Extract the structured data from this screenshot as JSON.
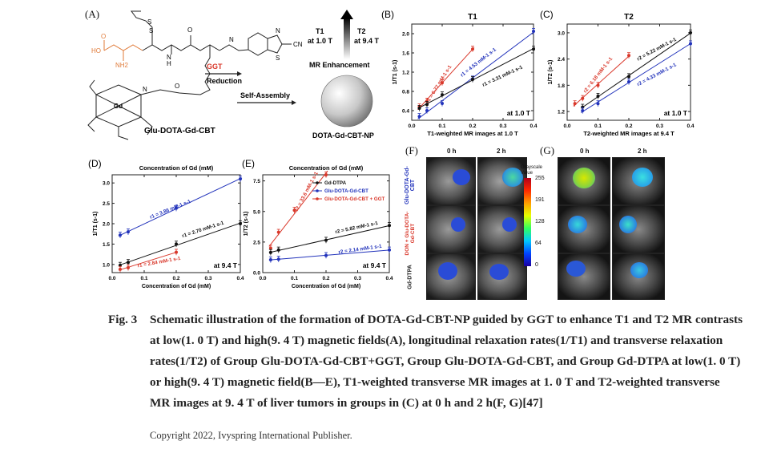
{
  "panelA": {
    "label": "(A)",
    "molecule_name": "Glu-DOTA-Gd-CBT",
    "nanoparticle_name": "DOTA-Gd-CBT-NP",
    "steps": [
      "GGT",
      "Reduction",
      "Self-Assembly"
    ],
    "enhancement_label": "MR Enhancement",
    "t1_label": "T1",
    "t1_field": "at 1.0 T",
    "t2_label": "T2",
    "t2_field": "at 9.4 T",
    "atoms": {
      "ho": "HO",
      "nh2": "NH2",
      "o": "O",
      "s": "S",
      "n": "N",
      "h": "H",
      "cn": "CN",
      "gd": "Gd"
    }
  },
  "chart_data": [
    {
      "id": "B",
      "label": "(B)",
      "type": "line",
      "title": "T1",
      "xlabel": "T1-weighted MR images at 1.0 T",
      "ylabel": "1/T1 (s-1)",
      "xlim": [
        0.0,
        0.4
      ],
      "ylim": [
        0.2,
        2.2
      ],
      "xticks": [
        "0.0",
        "0.1",
        "0.2",
        "0.3",
        "0.4"
      ],
      "yticks": [
        "0.4",
        "0.8",
        "1.2",
        "1.6",
        "2.0"
      ],
      "corner_note": "at 1.0 T",
      "series": [
        {
          "color": "#d9372a",
          "annotation": "r1 = 6.77 mM-1 s-1",
          "x": [
            0.025,
            0.05,
            0.1,
            0.2
          ],
          "y": [
            0.48,
            0.6,
            0.98,
            1.68
          ]
        },
        {
          "color": "#2233bb",
          "annotation": "r1 = 4.53 mM-1 s-1",
          "x": [
            0.025,
            0.05,
            0.1,
            0.2,
            0.4
          ],
          "y": [
            0.28,
            0.4,
            0.55,
            1.06,
            2.05
          ]
        },
        {
          "color": "#111111",
          "annotation": "r1 = 3.31 mM-1 s-1",
          "x": [
            0.025,
            0.05,
            0.1,
            0.2,
            0.4
          ],
          "y": [
            0.45,
            0.53,
            0.73,
            1.05,
            1.68
          ]
        }
      ]
    },
    {
      "id": "C",
      "label": "(C)",
      "type": "line",
      "title": "T2",
      "xlabel": "T2-weighted MR images at 9.4 T",
      "ylabel": "1/T2 (s-1)",
      "xlim": [
        0.0,
        0.4
      ],
      "ylim": [
        1.0,
        3.2
      ],
      "xticks": [
        "0.0",
        "0.1",
        "0.2",
        "0.3",
        "0.4"
      ],
      "yticks": [
        "1.2",
        "1.8",
        "2.4",
        "3.0"
      ],
      "corner_note": "at 1.0 T",
      "series": [
        {
          "color": "#d9372a",
          "annotation": "r2 = 6.18 mM-1 s-1",
          "x": [
            0.025,
            0.05,
            0.1,
            0.2
          ],
          "y": [
            1.38,
            1.5,
            1.8,
            2.48
          ]
        },
        {
          "color": "#111111",
          "annotation": "r2 = 5.22 mM-1 s-1",
          "x": [
            0.05,
            0.1,
            0.2,
            0.4
          ],
          "y": [
            1.3,
            1.55,
            2.0,
            3.0
          ]
        },
        {
          "color": "#2233bb",
          "annotation": "r2 = 4.33 mM-1 s-1",
          "x": [
            0.05,
            0.1,
            0.2,
            0.4
          ],
          "y": [
            1.22,
            1.38,
            1.88,
            2.75
          ]
        }
      ]
    },
    {
      "id": "D",
      "label": "(D)",
      "type": "line",
      "title": "Concentration of Gd (mM)",
      "xlabel": "Concentration of Gd (mM)",
      "ylabel": "1/T1 (s-1)",
      "xlim": [
        0.0,
        0.4
      ],
      "ylim": [
        0.8,
        3.2
      ],
      "xticks": [
        "0.0",
        "0.1",
        "0.2",
        "0.3",
        "0.4"
      ],
      "yticks": [
        "1.0",
        "1.5",
        "2.0",
        "2.5",
        "3.0"
      ],
      "corner_note": "at 9.4 T",
      "series": [
        {
          "color": "#2233bb",
          "annotation": "r1 = 3.86 mM-1 s-1",
          "x": [
            0.025,
            0.05,
            0.2,
            0.4
          ],
          "y": [
            1.72,
            1.8,
            2.38,
            3.1
          ]
        },
        {
          "color": "#111111",
          "annotation": "r1 = 2.70 mM-1 s-1",
          "x": [
            0.025,
            0.05,
            0.2,
            0.4
          ],
          "y": [
            0.98,
            1.05,
            1.5,
            2.0
          ]
        },
        {
          "color": "#d9372a",
          "annotation": "r1 = 2.84 mM-1 s-1",
          "x": [
            0.025,
            0.05,
            0.2
          ],
          "y": [
            0.88,
            0.92,
            1.3
          ]
        }
      ]
    },
    {
      "id": "E",
      "label": "(E)",
      "type": "line",
      "title": "Concentration of Gd (mM)",
      "xlabel": "Concentration of Gd (mM)",
      "ylabel": "1/T2 (s-1)",
      "xlim": [
        0.0,
        0.4
      ],
      "ylim": [
        0.0,
        8.0
      ],
      "xticks": [
        "0.0",
        "0.1",
        "0.2",
        "0.3",
        "0.4"
      ],
      "yticks": [
        "0.0",
        "2.5",
        "5.0",
        "7.5"
      ],
      "corner_note": "at 9.4 T",
      "legend": [
        "Gd-DTPA",
        "Glu-DOTA-Gd-CBT",
        "Glu-DOTA-Gd-CBT + GGT"
      ],
      "series": [
        {
          "color": "#d9372a",
          "annotation": "r2 = 33.6 mM-1 s-1",
          "x": [
            0.025,
            0.05,
            0.1,
            0.2
          ],
          "y": [
            2.0,
            3.3,
            5.1,
            8.0
          ]
        },
        {
          "color": "#111111",
          "annotation": "r2 = 5.82 mM-1 s-1",
          "x": [
            0.025,
            0.05,
            0.2,
            0.4
          ],
          "y": [
            1.65,
            1.85,
            2.65,
            3.85
          ]
        },
        {
          "color": "#2233bb",
          "annotation": "r2 = 2.14 mM-1 s-1",
          "x": [
            0.025,
            0.05,
            0.2,
            0.4
          ],
          "y": [
            1.05,
            1.1,
            1.4,
            1.85
          ]
        }
      ]
    }
  ],
  "panelF": {
    "label": "(F)",
    "time_labels": [
      "0 h",
      "2 h"
    ],
    "row_labels": [
      "Glu-DOTA-Gd-CBT",
      "DON + Glu-DOTA-Gd-CBT",
      "Gd-DTPA"
    ],
    "colorbar_title": "Grayscale Value",
    "colorbar_ticks": [
      "255",
      "191",
      "128",
      "64",
      "0"
    ]
  },
  "panelG": {
    "label": "(G)",
    "time_labels": [
      "0 h",
      "2 h"
    ]
  },
  "caption": {
    "fig_no": "Fig. 3",
    "text": "Schematic illustration of the formation of DOTA-Gd-CBT-NP guided by GGT to enhance T1 and T2 MR contrasts at low(1. 0 T) and high(9. 4 T) magnetic fields(A), longitudinal relaxation rates(1/T1) and transverse relaxation rates(1/T2) of Group Glu-DOTA-Gd-CBT+GGT, Group Glu-DOTA-Gd-CBT, and Group Gd-DTPA at low(1. 0 T) or high(9. 4 T) magnetic field(B—E), T1-weighted transverse MR images at 1. 0 T and T2-weighted transverse MR images at 9. 4 T of liver tumors in groups in (C) at 0 h and 2 h(F, G)[47]",
    "copyright": "Copyright 2022, Ivyspring International Publisher."
  }
}
